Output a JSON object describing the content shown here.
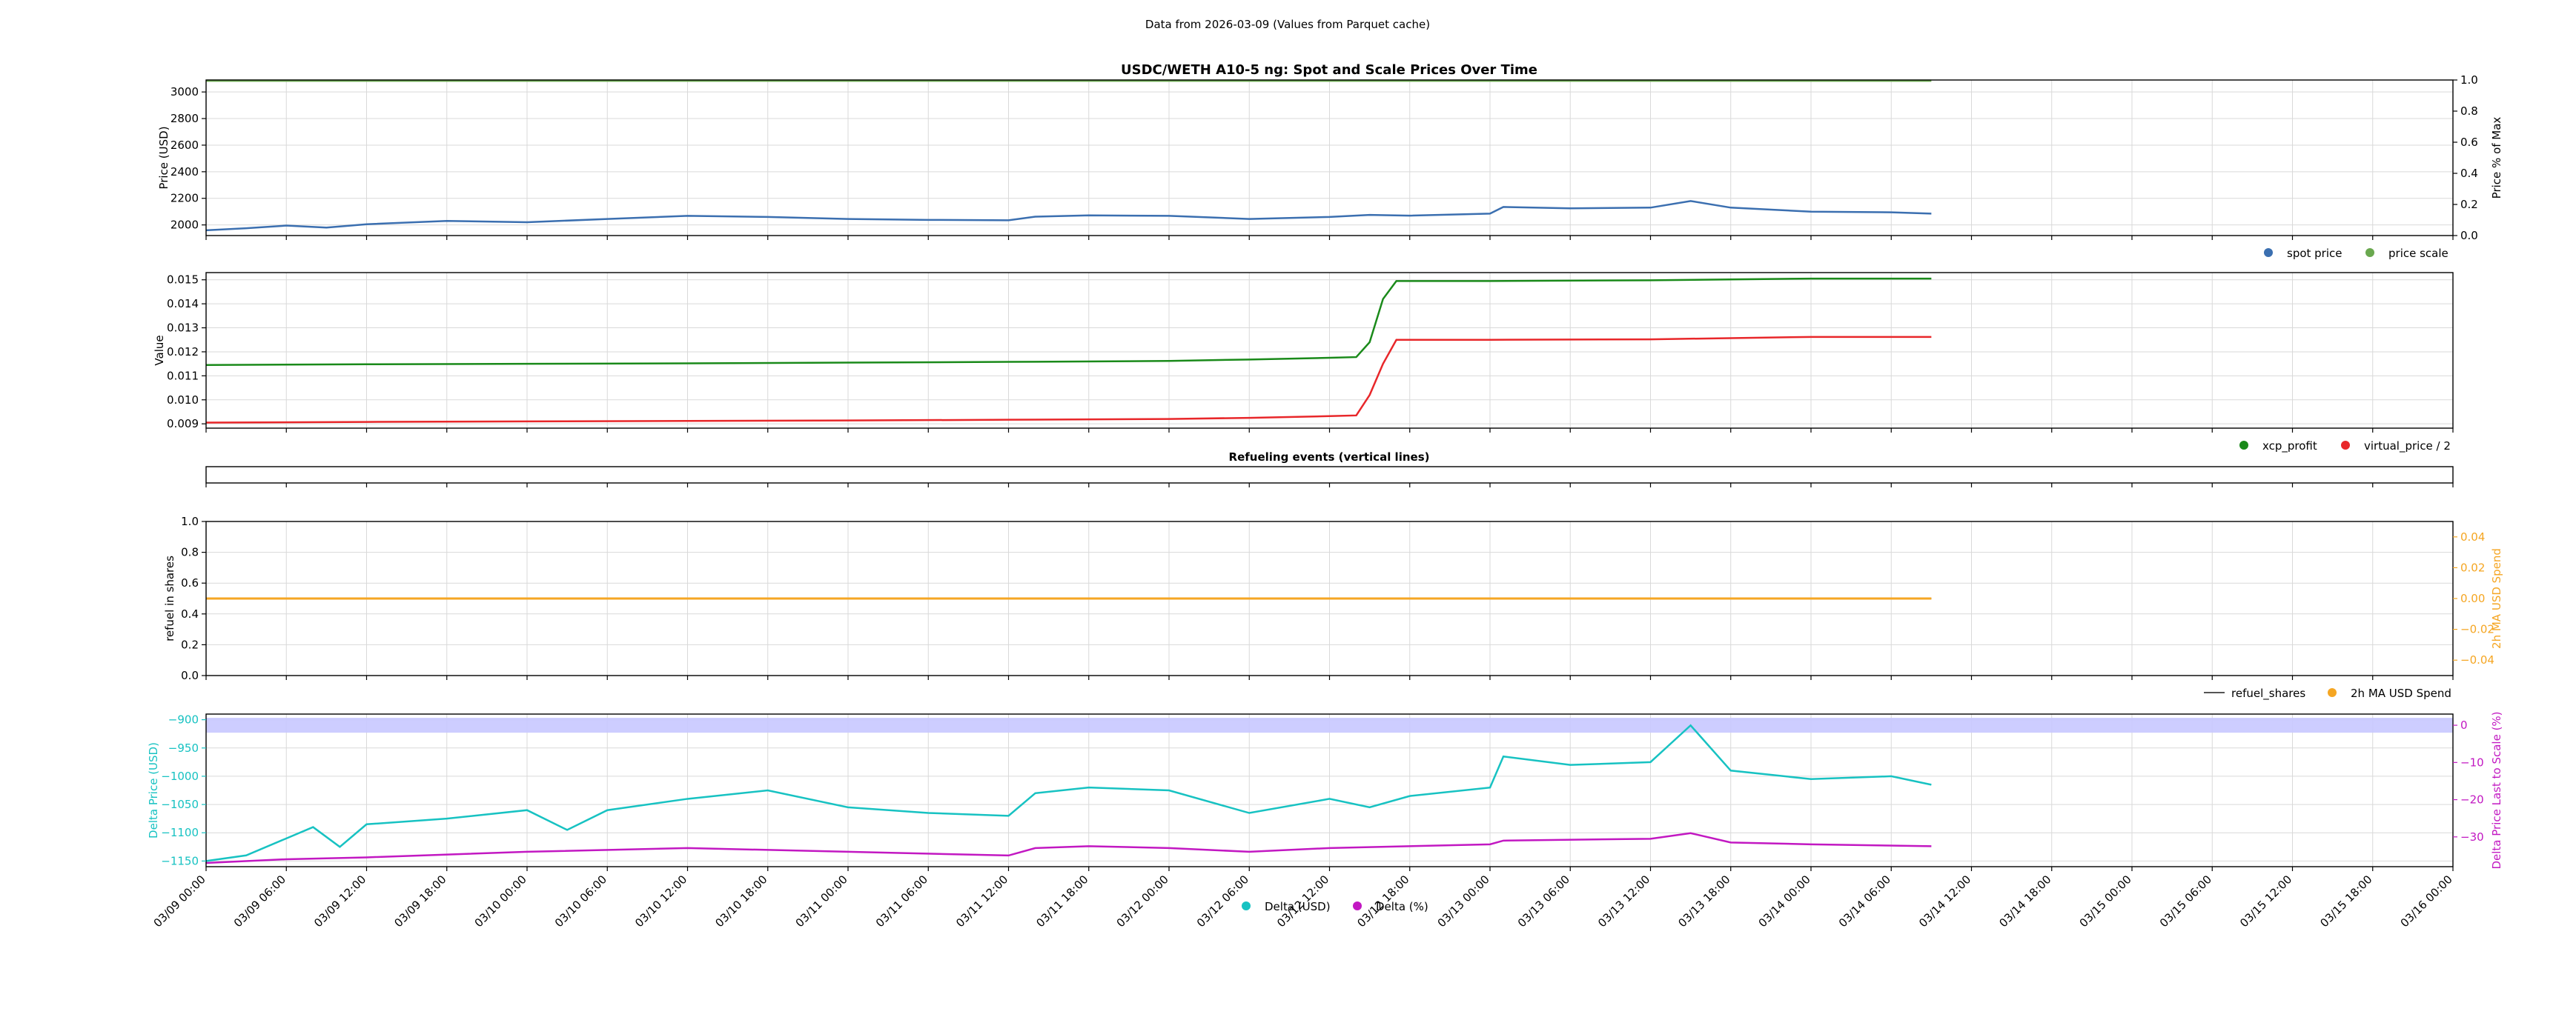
{
  "header": {
    "data_note": "Data from 2026-03-09 (Values from Parquet cache)"
  },
  "colors": {
    "spot": "#3b6fb0",
    "scale": "#6aa84f",
    "xcp": "#1a8a1a",
    "virtual": "#e8272a",
    "refuel_line": "#555555",
    "ma_spend": "#f5a623",
    "delta_usd": "#17c2c2",
    "delta_pct": "#c218c2",
    "band": "#c8c8ff"
  },
  "x_axis": {
    "range": [
      "03/09 00:00",
      "03/16 00:00"
    ],
    "ticks": [
      "03/09 00:00",
      "03/09 06:00",
      "03/09 12:00",
      "03/09 18:00",
      "03/10 00:00",
      "03/10 06:00",
      "03/10 12:00",
      "03/10 18:00",
      "03/11 00:00",
      "03/11 06:00",
      "03/11 12:00",
      "03/11 18:00",
      "03/12 00:00",
      "03/12 06:00",
      "03/12 12:00",
      "03/12 18:00",
      "03/13 00:00",
      "03/13 06:00",
      "03/13 12:00",
      "03/13 18:00",
      "03/14 00:00",
      "03/14 06:00",
      "03/14 12:00",
      "03/14 18:00",
      "03/15 00:00",
      "03/15 06:00",
      "03/15 12:00",
      "03/15 18:00",
      "03/16 00:00"
    ],
    "data_end": "03/14 09:00"
  },
  "chart_data": [
    {
      "type": "line",
      "title": "USDC/WETH A10-5 ng: Spot and Scale Prices Over Time",
      "ylabel": "Price (USD)",
      "ylim": [
        1920,
        3090
      ],
      "yticks": [
        2000,
        2200,
        2400,
        2600,
        2800,
        3000
      ],
      "y2label": "Price % of Max",
      "y2lim": [
        0,
        1
      ],
      "y2ticks": [
        "0.0",
        "0.2",
        "0.4",
        "0.6",
        "0.8",
        "1.0"
      ],
      "legend": "bottom-right",
      "series": [
        {
          "name": "spot price",
          "axis": "left",
          "points": [
            [
              "03/09 00:00",
              1960
            ],
            [
              "03/09 03:00",
              1975
            ],
            [
              "03/09 06:00",
              1995
            ],
            [
              "03/09 09:00",
              1980
            ],
            [
              "03/09 12:00",
              2005
            ],
            [
              "03/09 18:00",
              2030
            ],
            [
              "03/10 00:00",
              2020
            ],
            [
              "03/10 06:00",
              2045
            ],
            [
              "03/10 12:00",
              2068
            ],
            [
              "03/10 18:00",
              2060
            ],
            [
              "03/11 00:00",
              2045
            ],
            [
              "03/11 06:00",
              2038
            ],
            [
              "03/11 12:00",
              2035
            ],
            [
              "03/11 14:00",
              2062
            ],
            [
              "03/11 18:00",
              2072
            ],
            [
              "03/12 00:00",
              2068
            ],
            [
              "03/12 06:00",
              2045
            ],
            [
              "03/12 12:00",
              2060
            ],
            [
              "03/12 15:00",
              2075
            ],
            [
              "03/12 18:00",
              2070
            ],
            [
              "03/13 00:00",
              2085
            ],
            [
              "03/13 01:00",
              2135
            ],
            [
              "03/13 06:00",
              2125
            ],
            [
              "03/13 12:00",
              2130
            ],
            [
              "03/13 15:00",
              2180
            ],
            [
              "03/13 18:00",
              2130
            ],
            [
              "03/14 00:00",
              2100
            ],
            [
              "03/14 06:00",
              2095
            ],
            [
              "03/14 09:00",
              2085
            ]
          ]
        },
        {
          "name": "price scale",
          "axis": "left",
          "points": [
            [
              "03/09 00:00",
              3085
            ],
            [
              "03/14 09:00",
              3085
            ]
          ]
        }
      ]
    },
    {
      "type": "line",
      "title": "",
      "ylabel": "Value",
      "ylim": [
        0.00882,
        0.0153
      ],
      "yticks": [
        "0.009",
        "0.010",
        "0.011",
        "0.012",
        "0.013",
        "0.014",
        "0.015"
      ],
      "legend": "bottom-right",
      "series": [
        {
          "name": "xcp_profit",
          "points": [
            [
              "03/09 00:00",
              0.01145
            ],
            [
              "03/09 12:00",
              0.01148
            ],
            [
              "03/10 00:00",
              0.0115
            ],
            [
              "03/10 12:00",
              0.01152
            ],
            [
              "03/11 00:00",
              0.01155
            ],
            [
              "03/11 12:00",
              0.01158
            ],
            [
              "03/12 00:00",
              0.01162
            ],
            [
              "03/12 06:00",
              0.01168
            ],
            [
              "03/12 12:00",
              0.01175
            ],
            [
              "03/12 14:00",
              0.01178
            ],
            [
              "03/12 15:00",
              0.0124
            ],
            [
              "03/12 16:00",
              0.0142
            ],
            [
              "03/12 17:00",
              0.01495
            ],
            [
              "03/13 00:00",
              0.01495
            ],
            [
              "03/13 12:00",
              0.01498
            ],
            [
              "03/14 00:00",
              0.01505
            ],
            [
              "03/14 09:00",
              0.01505
            ]
          ]
        },
        {
          "name": "virtual_price / 2",
          "points": [
            [
              "03/09 00:00",
              0.00905
            ],
            [
              "03/09 12:00",
              0.00908
            ],
            [
              "03/10 00:00",
              0.0091
            ],
            [
              "03/10 12:00",
              0.00912
            ],
            [
              "03/11 00:00",
              0.00914
            ],
            [
              "03/11 12:00",
              0.00917
            ],
            [
              "03/12 00:00",
              0.0092
            ],
            [
              "03/12 06:00",
              0.00925
            ],
            [
              "03/12 12:00",
              0.00932
            ],
            [
              "03/12 14:00",
              0.00935
            ],
            [
              "03/12 15:00",
              0.0102
            ],
            [
              "03/12 16:00",
              0.0115
            ],
            [
              "03/12 17:00",
              0.0125
            ],
            [
              "03/13 00:00",
              0.0125
            ],
            [
              "03/13 12:00",
              0.01252
            ],
            [
              "03/14 00:00",
              0.01262
            ],
            [
              "03/14 09:00",
              0.01262
            ]
          ]
        }
      ]
    },
    {
      "type": "line",
      "title": "Refueling events (vertical lines)",
      "series": []
    },
    {
      "type": "line",
      "title": "",
      "ylabel": "refuel in shares",
      "ylim": [
        0,
        1
      ],
      "yticks": [
        "0.0",
        "0.2",
        "0.4",
        "0.6",
        "0.8",
        "1.0"
      ],
      "y2label": "2h MA USD Spend",
      "y2lim": [
        -0.05,
        0.05
      ],
      "y2ticks": [
        "−0.04",
        "−0.02",
        "0.00",
        "0.02",
        "0.04"
      ],
      "legend": "bottom-right",
      "series": [
        {
          "name": "refuel_shares",
          "axis": "left",
          "points": [
            [
              "03/09 00:00",
              0.5
            ],
            [
              "03/14 09:00",
              0.5
            ]
          ]
        },
        {
          "name": "2h MA USD Spend",
          "axis": "right",
          "points": [
            [
              "03/09 00:00",
              0.0
            ],
            [
              "03/14 09:00",
              0.0
            ]
          ]
        }
      ]
    },
    {
      "type": "line",
      "title": "",
      "ylabel": "Delta Price (USD)",
      "ylim": [
        -1160,
        -890
      ],
      "yticks": [
        "−1150",
        "−1100",
        "−1050",
        "−1000",
        "−950",
        "−900"
      ],
      "y2label": "Delta Price Last to Scale (%)",
      "y2lim": [
        -38,
        3
      ],
      "y2ticks": [
        "−30",
        "−20",
        "−10",
        "0"
      ],
      "band_pct": [
        -2,
        2
      ],
      "legend": "bottom-center",
      "series": [
        {
          "name": "Delta (USD)",
          "axis": "left",
          "points": [
            [
              "03/09 00:00",
              -1150
            ],
            [
              "03/09 03:00",
              -1140
            ],
            [
              "03/09 06:00",
              -1110
            ],
            [
              "03/09 08:00",
              -1090
            ],
            [
              "03/09 10:00",
              -1125
            ],
            [
              "03/09 12:00",
              -1085
            ],
            [
              "03/09 18:00",
              -1075
            ],
            [
              "03/10 00:00",
              -1060
            ],
            [
              "03/10 03:00",
              -1095
            ],
            [
              "03/10 06:00",
              -1060
            ],
            [
              "03/10 12:00",
              -1040
            ],
            [
              "03/10 18:00",
              -1025
            ],
            [
              "03/11 00:00",
              -1055
            ],
            [
              "03/11 06:00",
              -1065
            ],
            [
              "03/11 12:00",
              -1070
            ],
            [
              "03/11 14:00",
              -1030
            ],
            [
              "03/11 18:00",
              -1020
            ],
            [
              "03/12 00:00",
              -1025
            ],
            [
              "03/12 06:00",
              -1065
            ],
            [
              "03/12 12:00",
              -1040
            ],
            [
              "03/12 15:00",
              -1055
            ],
            [
              "03/12 18:00",
              -1035
            ],
            [
              "03/13 00:00",
              -1020
            ],
            [
              "03/13 01:00",
              -965
            ],
            [
              "03/13 06:00",
              -980
            ],
            [
              "03/13 12:00",
              -975
            ],
            [
              "03/13 15:00",
              -910
            ],
            [
              "03/13 18:00",
              -990
            ],
            [
              "03/14 00:00",
              -1005
            ],
            [
              "03/14 06:00",
              -1000
            ],
            [
              "03/14 09:00",
              -1015
            ]
          ]
        },
        {
          "name": "Delta (%)",
          "axis": "right",
          "points": [
            [
              "03/09 00:00",
              -37
            ],
            [
              "03/09 06:00",
              -36
            ],
            [
              "03/09 12:00",
              -35.5
            ],
            [
              "03/10 00:00",
              -34
            ],
            [
              "03/10 12:00",
              -33
            ],
            [
              "03/11 00:00",
              -34
            ],
            [
              "03/11 12:00",
              -35
            ],
            [
              "03/11 14:00",
              -33
            ],
            [
              "03/11 18:00",
              -32.5
            ],
            [
              "03/12 00:00",
              -33
            ],
            [
              "03/12 06:00",
              -34
            ],
            [
              "03/12 12:00",
              -33
            ],
            [
              "03/13 00:00",
              -32
            ],
            [
              "03/13 01:00",
              -31
            ],
            [
              "03/13 12:00",
              -30.5
            ],
            [
              "03/13 15:00",
              -29
            ],
            [
              "03/13 18:00",
              -31.5
            ],
            [
              "03/14 00:00",
              -32
            ],
            [
              "03/14 09:00",
              -32.5
            ]
          ]
        }
      ]
    }
  ]
}
